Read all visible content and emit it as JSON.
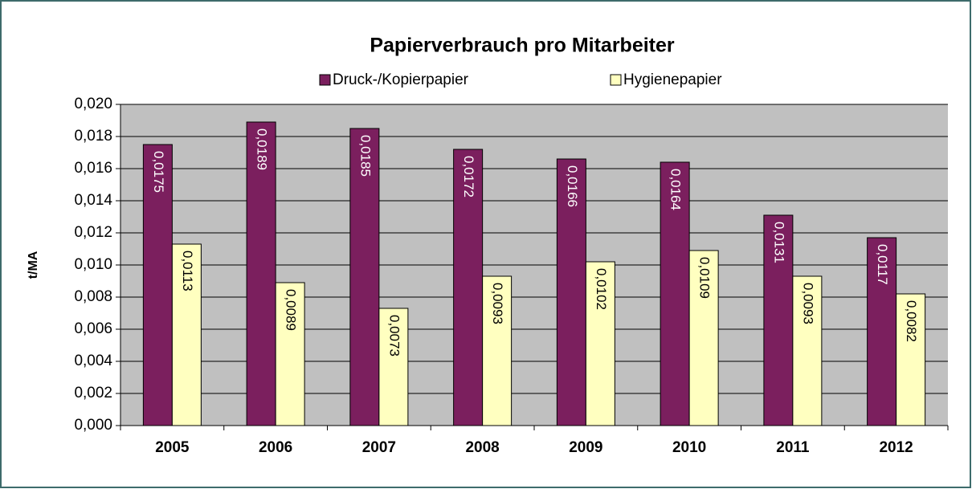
{
  "chart_data": {
    "type": "bar",
    "title": "Papierverbrauch pro Mitarbeiter",
    "y_label": "t/MA",
    "categories": [
      "2005",
      "2006",
      "2007",
      "2008",
      "2009",
      "2010",
      "2011",
      "2012"
    ],
    "series": [
      {
        "name": "Druck-/Kopierpapier",
        "color": "#7b1f5e",
        "values": [
          0.0175,
          0.0189,
          0.0185,
          0.0172,
          0.0166,
          0.0164,
          0.0131,
          0.0117
        ],
        "value_labels": [
          "0,0175",
          "0,0189",
          "0,0185",
          "0,0172",
          "0,0166",
          "0,0164",
          "0,0131",
          "0,0117"
        ]
      },
      {
        "name": "Hygienepapier",
        "color": "#ffffc0",
        "values": [
          0.0113,
          0.0089,
          0.0073,
          0.0093,
          0.0102,
          0.0109,
          0.0093,
          0.0082
        ],
        "value_labels": [
          "0,0113",
          "0,0089",
          "0,0073",
          "0,0093",
          "0,0102",
          "0,0109",
          "0,0093",
          "0,0082"
        ]
      }
    ],
    "ylim": [
      0,
      0.02
    ],
    "yticks": [
      {
        "value": 0,
        "label": "0,000"
      },
      {
        "value": 0.002,
        "label": "0,002"
      },
      {
        "value": 0.004,
        "label": "0,004"
      },
      {
        "value": 0.006,
        "label": "0,006"
      },
      {
        "value": 0.008,
        "label": "0,008"
      },
      {
        "value": 0.01,
        "label": "0,010"
      },
      {
        "value": 0.012,
        "label": "0,012"
      },
      {
        "value": 0.014,
        "label": "0,014"
      },
      {
        "value": 0.016,
        "label": "0,016"
      },
      {
        "value": 0.018,
        "label": "0,018"
      },
      {
        "value": 0.02,
        "label": "0,020"
      }
    ],
    "grid": true,
    "legend": "top"
  }
}
